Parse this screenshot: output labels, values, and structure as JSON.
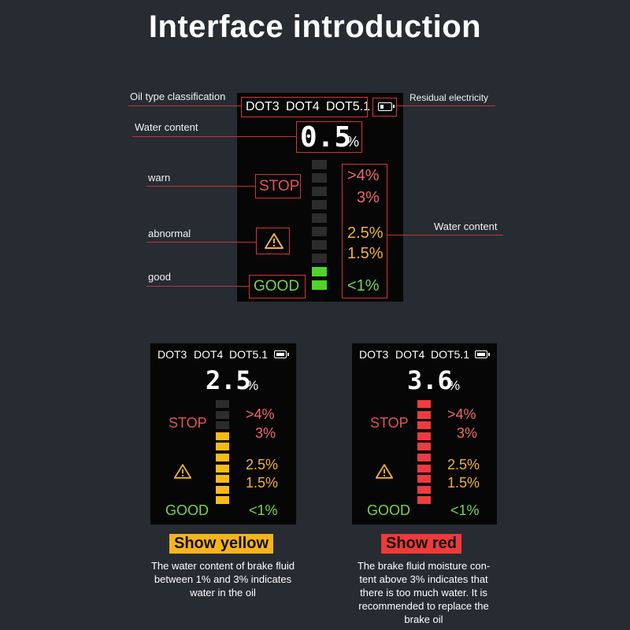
{
  "title": "Interface introduction",
  "callouts": {
    "oil_type": "Oil type classification",
    "residual": "Residual electricity",
    "water_content_left": "Water content",
    "water_content_right": "Water content",
    "warn": "warn",
    "abnormal": "abnormal",
    "good": "good"
  },
  "screen_main": {
    "dot_types": [
      "DOT3",
      "DOT4",
      "DOT5.1"
    ],
    "reading": "0.5",
    "unit": "%",
    "stop_label": "STOP",
    "good_label": "GOOD",
    "levels": [
      ">4%",
      "3%",
      "2.5%",
      "1.5%",
      "<1%"
    ],
    "lit_segments": 2,
    "bar_color": "green",
    "battery_icon": "battery-icon",
    "warning_icon": "warning-triangle-icon"
  },
  "screen_yellow": {
    "dot_types": [
      "DOT3",
      "DOT4",
      "DOT5.1"
    ],
    "reading": "2.5",
    "unit": "%",
    "stop_label": "STOP",
    "good_label": "GOOD",
    "levels": [
      ">4%",
      "3%",
      "2.5%",
      "1.5%",
      "<1%"
    ],
    "lit_segments": 7,
    "bar_color": "yellow",
    "badge": "Show yellow",
    "badge_color": "#f7b51c",
    "caption": [
      "The water content of brake fluid",
      "between 1% and 3% indicates",
      "water in the oil"
    ]
  },
  "screen_red": {
    "dot_types": [
      "DOT3",
      "DOT4",
      "DOT5.1"
    ],
    "reading": "3.6",
    "unit": "%",
    "stop_label": "STOP",
    "good_label": "GOOD",
    "levels": [
      ">4%",
      "3%",
      "2.5%",
      "1.5%",
      "<1%"
    ],
    "lit_segments": 10,
    "bar_color": "red",
    "badge": "Show red",
    "badge_color": "#ee3a3a",
    "caption": [
      "The brake fluid moisture con-",
      "tent above 3% indicates that",
      "there is too much water. It is",
      "recommended to replace the",
      "brake oil"
    ]
  },
  "colors": {
    "background": "#272b32",
    "screen": "#060606",
    "callout_red": "#d2343b",
    "green": "#4fd42a",
    "yellow": "#f6bb18",
    "red": "#ee3b3f"
  }
}
